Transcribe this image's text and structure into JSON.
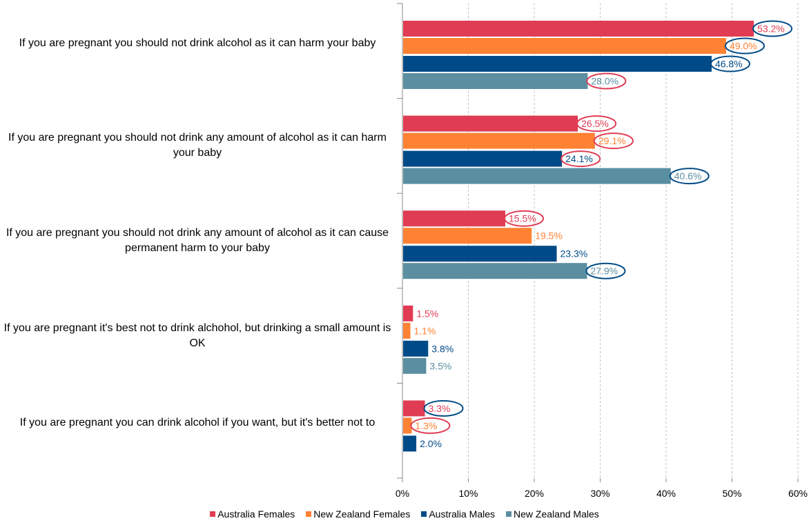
{
  "chart_data": {
    "type": "bar",
    "orientation": "horizontal",
    "categories": [
      "If you are pregnant you should not drink alcohol as it can harm your baby",
      "If you are pregnant you should not drink any amount of alcohol as it can harm your baby",
      "If you are pregnant you should not drink any amount of alcohol as it can cause permanent harm to your baby",
      "If you are pregnant it's best not to drink alchohol, but drinking a small amount is OK",
      "If you are pregnant you can drink alcohol if you want, but it's better not to"
    ],
    "series": [
      {
        "name": "Australia Females",
        "color": "#e03c53",
        "values": [
          53.2,
          26.5,
          15.5,
          1.5,
          3.3
        ],
        "labels": [
          "53.2%",
          "26.5%",
          "15.5%",
          "1.5%",
          "3.3%"
        ]
      },
      {
        "name": "New Zealand Females",
        "color": "#ff8133",
        "values": [
          49.0,
          29.1,
          19.5,
          1.1,
          1.3
        ],
        "labels": [
          "49.0%",
          "29.1%",
          "19.5%",
          "1.1%",
          "1.3%"
        ]
      },
      {
        "name": "Australia Males",
        "color": "#004b87",
        "values": [
          46.8,
          24.1,
          23.3,
          3.8,
          2.0
        ],
        "labels": [
          "46.8%",
          "24.1%",
          "23.3%",
          "3.8%",
          "2.0%"
        ]
      },
      {
        "name": "New Zealand Males",
        "color": "#5b8ea1",
        "values": [
          28.0,
          40.6,
          27.9,
          3.5,
          null
        ],
        "labels": [
          "28.0%",
          "40.6%",
          "27.9%",
          "3.5%",
          ""
        ]
      }
    ],
    "label_circles": [
      {
        "category": 0,
        "series": 0,
        "color": "#004b87"
      },
      {
        "category": 0,
        "series": 1,
        "color": "#004b87"
      },
      {
        "category": 0,
        "series": 2,
        "color": "#004b87"
      },
      {
        "category": 0,
        "series": 3,
        "color": "#e03c53"
      },
      {
        "category": 1,
        "series": 0,
        "color": "#e03c53"
      },
      {
        "category": 1,
        "series": 1,
        "color": "#e03c53"
      },
      {
        "category": 1,
        "series": 2,
        "color": "#e03c53"
      },
      {
        "category": 1,
        "series": 3,
        "color": "#004b87"
      },
      {
        "category": 2,
        "series": 0,
        "color": "#e03c53"
      },
      {
        "category": 2,
        "series": 3,
        "color": "#004b87"
      },
      {
        "category": 4,
        "series": 0,
        "color": "#004b87"
      },
      {
        "category": 4,
        "series": 1,
        "color": "#e03c53"
      }
    ],
    "xlim": [
      0,
      60
    ],
    "x_ticks": [
      "0%",
      "10%",
      "20%",
      "30%",
      "40%",
      "50%",
      "60%"
    ],
    "grid": "vertical dashed",
    "legend_position": "bottom",
    "title": "",
    "xlabel": "",
    "ylabel": ""
  }
}
